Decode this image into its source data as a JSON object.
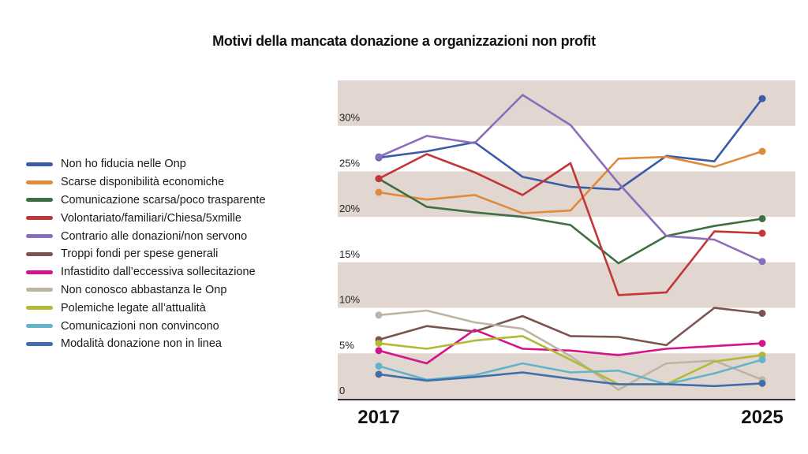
{
  "chart_data": {
    "type": "line",
    "title": "Motivi della mancata donazione a organizzazioni non profit",
    "xlabel": "",
    "ylabel": "",
    "x": [
      2017,
      2018,
      2019,
      2020,
      2021,
      2022,
      2023,
      2024,
      2025
    ],
    "x_tick_labels": [
      "2017",
      "2025"
    ],
    "ylim": [
      0,
      35
    ],
    "y_ticks": [
      0,
      5,
      10,
      15,
      20,
      25,
      30
    ],
    "y_tick_labels": [
      "0",
      "5%",
      "10%",
      "15%",
      "20%",
      "25%",
      "30%"
    ],
    "shaded_bands": [
      [
        0,
        5
      ],
      [
        10,
        15
      ],
      [
        20,
        25
      ],
      [
        30,
        35
      ]
    ],
    "band_color": "#e2d6d1",
    "legend_position": "left",
    "series": [
      {
        "name": "Non ho fiducia nelle Onp",
        "color": "#3a5ba8",
        "values": [
          26.5,
          27.2,
          28.2,
          24.4,
          23.3,
          23.0,
          26.7,
          26.1,
          33.0
        ]
      },
      {
        "name": "Scarse disponibilità economiche",
        "color": "#e08a3c",
        "values": [
          22.7,
          21.9,
          22.4,
          20.4,
          20.7,
          26.4,
          26.6,
          25.5,
          27.2
        ]
      },
      {
        "name": "Comunicazione scarsa/poco trasparente",
        "color": "#3c7042",
        "values": [
          24.2,
          21.1,
          20.5,
          20.0,
          19.1,
          14.9,
          17.9,
          19.0,
          19.8
        ]
      },
      {
        "name": "Volontariato/familiari/Chiesa/5xmille",
        "color": "#c2363a",
        "values": [
          24.2,
          26.9,
          24.9,
          22.4,
          25.9,
          11.4,
          11.7,
          18.4,
          18.2
        ]
      },
      {
        "name": "Contrario alle donazioni/non servono",
        "color": "#8a6dbb",
        "values": [
          26.6,
          28.9,
          28.1,
          33.4,
          30.1,
          23.7,
          17.9,
          17.5,
          15.1
        ]
      },
      {
        "name": "Troppi fondi per spese generali",
        "color": "#7a5550",
        "values": [
          6.5,
          8.0,
          7.4,
          9.1,
          6.9,
          6.8,
          5.9,
          10.0,
          9.4
        ]
      },
      {
        "name": "Infastidito dall’eccessiva sollecitazione",
        "color": "#d4148c",
        "values": [
          5.3,
          3.9,
          7.6,
          5.5,
          5.3,
          4.8,
          5.5,
          5.8,
          6.1
        ]
      },
      {
        "name": "Non conosco abbastanza le Onp",
        "color": "#bdb5a2",
        "values": [
          9.2,
          9.7,
          8.4,
          7.7,
          4.7,
          1.0,
          3.9,
          4.2,
          2.1
        ]
      },
      {
        "name": "Polemiche legate all’attualità",
        "color": "#b1b935",
        "values": [
          6.1,
          5.5,
          6.4,
          6.9,
          4.3,
          1.6,
          1.6,
          4.1,
          4.8
        ]
      },
      {
        "name": "Comunicazioni non convincono",
        "color": "#62b5c8",
        "values": [
          3.6,
          2.1,
          2.6,
          3.9,
          2.9,
          3.1,
          1.6,
          2.8,
          4.3
        ]
      },
      {
        "name": "Modalità donazione non in linea",
        "color": "#3f6ea8",
        "values": [
          2.7,
          2.0,
          2.4,
          2.9,
          2.2,
          1.6,
          1.6,
          1.4,
          1.7
        ]
      }
    ]
  }
}
